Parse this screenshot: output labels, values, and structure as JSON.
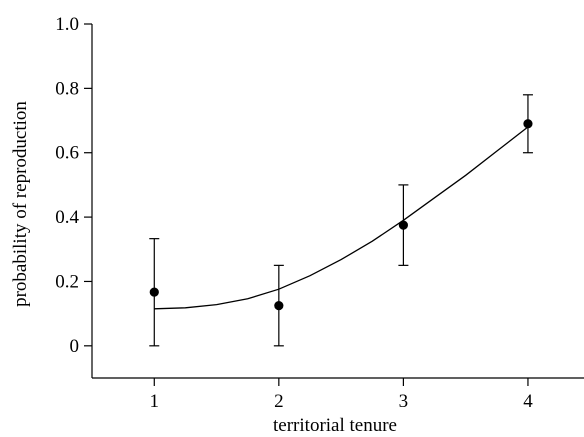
{
  "chart_data": {
    "type": "scatter",
    "xlabel": "territorial tenure",
    "ylabel": "probability of reproduction",
    "xlim": [
      0.5,
      4.45
    ],
    "ylim": [
      -0.1,
      1.0
    ],
    "xticks": [
      1,
      2,
      3,
      4
    ],
    "xtick_labels": [
      "1",
      "2",
      "3",
      "4"
    ],
    "yticks": [
      0,
      0.2,
      0.4,
      0.6,
      0.8,
      1.0
    ],
    "ytick_labels": [
      "0",
      "0.2",
      "0.4",
      "0.6",
      "0.8",
      "1.0"
    ],
    "grid": false,
    "points": [
      {
        "x": 1,
        "y": 0.167,
        "lower": 0.0,
        "upper": 0.333
      },
      {
        "x": 2,
        "y": 0.125,
        "lower": 0.0,
        "upper": 0.25
      },
      {
        "x": 3,
        "y": 0.375,
        "lower": 0.25,
        "upper": 0.5
      },
      {
        "x": 4,
        "y": 0.69,
        "lower": 0.6,
        "upper": 0.78
      }
    ],
    "fitted_curve": {
      "x": [
        1.0,
        1.25,
        1.5,
        1.75,
        2.0,
        2.25,
        2.5,
        2.75,
        3.0,
        3.25,
        3.5,
        3.75,
        4.0
      ],
      "y": [
        0.115,
        0.118,
        0.128,
        0.146,
        0.176,
        0.218,
        0.268,
        0.325,
        0.39,
        0.46,
        0.53,
        0.605,
        0.68
      ]
    }
  }
}
